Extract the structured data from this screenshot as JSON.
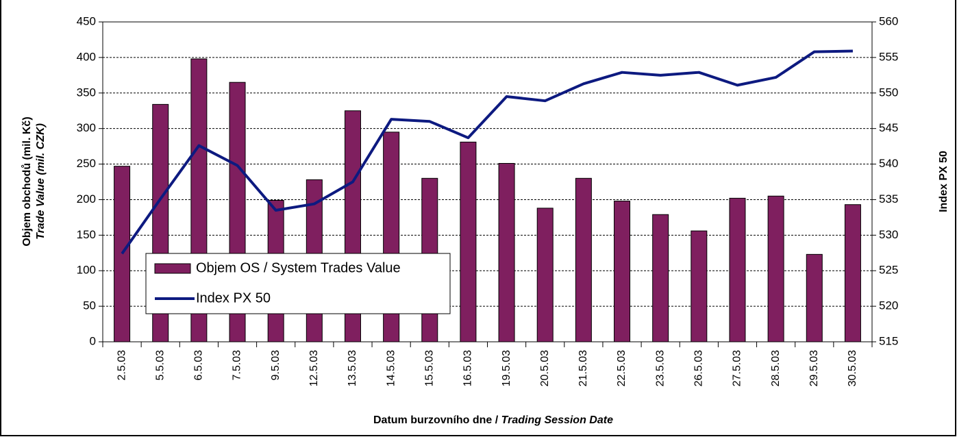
{
  "chart_data": {
    "type": "bar_line",
    "categories": [
      "2.5.03",
      "5.5.03",
      "6.5.03",
      "7.5.03",
      "9.5.03",
      "12.5.03",
      "13.5.03",
      "14.5.03",
      "15.5.03",
      "16.5.03",
      "19.5.03",
      "20.5.03",
      "21.5.03",
      "22.5.03",
      "23.5.03",
      "26.5.03",
      "27.5.03",
      "28.5.03",
      "29.5.03",
      "30.5.03"
    ],
    "series": [
      {
        "name": "Objem OS / System Trades Value",
        "color": "#7f1f5f",
        "type": "bar",
        "values": [
          247,
          334,
          398,
          365,
          199,
          228,
          325,
          295,
          230,
          281,
          251,
          188,
          230,
          198,
          179,
          156,
          202,
          205,
          123,
          193
        ]
      },
      {
        "name": "Index PX 50",
        "color": "#0d1a80",
        "type": "line",
        "axis": "y2",
        "values": [
          527.4,
          535.1,
          542.6,
          539.8,
          533.5,
          534.4,
          537.5,
          546.3,
          546.0,
          543.7,
          549.5,
          548.9,
          551.3,
          552.9,
          552.5,
          552.9,
          551.1,
          552.2,
          555.8,
          555.9
        ]
      }
    ],
    "ylim": [
      0,
      450
    ],
    "yticks": [
      0,
      50,
      100,
      150,
      200,
      250,
      300,
      350,
      400,
      450
    ],
    "y2lim": [
      515,
      560
    ],
    "y2ticks": [
      515,
      520,
      525,
      530,
      535,
      540,
      545,
      550,
      555,
      560
    ],
    "ylabel": "Objem obchodů (mil. Kč)",
    "ylabel_italic": "Trade Value (mil. CZK)",
    "y2label": "Index PX 50",
    "xlabel": "Datum burzovního dne /",
    "xlabel_italic": "Trading Session Date",
    "grid": true
  }
}
